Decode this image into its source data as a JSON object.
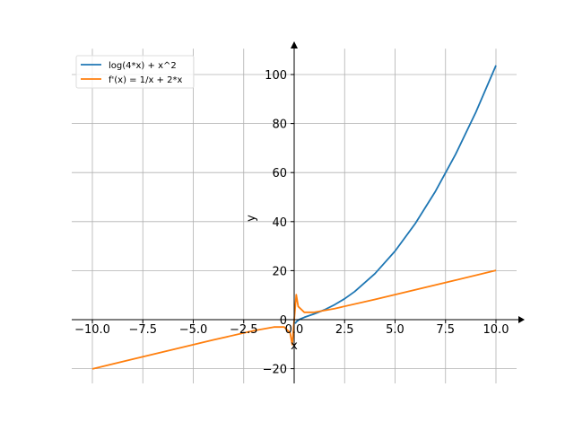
{
  "chart_data": {
    "type": "line",
    "title": "",
    "xlabel": "x",
    "ylabel": "y",
    "xlim": [
      -11,
      11
    ],
    "ylim": [
      -26,
      112
    ],
    "grid": true,
    "legend_position": "top-left",
    "xticks": [
      -10,
      -7.5,
      -5,
      -2.5,
      0,
      2.5,
      5,
      7.5,
      10
    ],
    "xtick_labels": [
      "−10.0",
      "−7.5",
      "−5.0",
      "−2.5",
      "0.0",
      "2.5",
      "5.0",
      "7.5",
      "10.0"
    ],
    "yticks": [
      -20,
      0,
      20,
      40,
      60,
      80,
      100
    ],
    "ytick_labels": [
      "−20",
      "0",
      "20",
      "40",
      "60",
      "80",
      "100"
    ],
    "series": [
      {
        "name": "log(4*x) + x^2",
        "color": "#1f77b4",
        "x": [
          0.05,
          0.1,
          0.25,
          0.5,
          1,
          1.5,
          2,
          2.5,
          3,
          4,
          5,
          6,
          7,
          8,
          9,
          10
        ],
        "y": [
          -1.6,
          -0.91,
          0.06,
          0.94,
          2.39,
          4.04,
          6.08,
          8.55,
          11.48,
          18.77,
          28.0,
          39.18,
          52.33,
          67.47,
          84.58,
          103.69
        ]
      },
      {
        "name": "f'(x) = 1/x + 2*x",
        "color": "#ff7f0e",
        "x": [
          -10,
          -8,
          -6,
          -4,
          -2,
          -1,
          -0.5,
          -0.2,
          -0.1,
          0.1,
          0.2,
          0.5,
          1,
          2,
          4,
          6,
          8,
          10
        ],
        "y": [
          -20.1,
          -16.13,
          -12.17,
          -8.25,
          -4.5,
          -3,
          -3,
          -5.4,
          -10.2,
          10.2,
          5.4,
          3,
          3,
          4.5,
          8.25,
          12.17,
          16.13,
          20.1
        ]
      }
    ]
  }
}
